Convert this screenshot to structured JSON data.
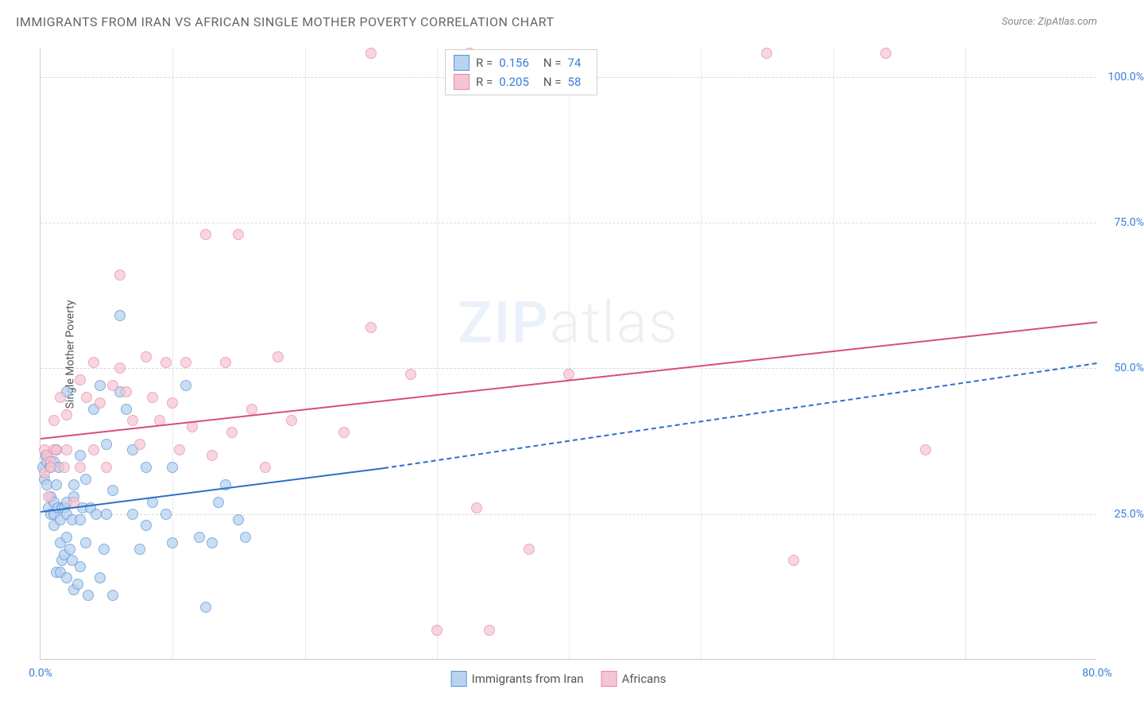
{
  "title": "IMMIGRANTS FROM IRAN VS AFRICAN SINGLE MOTHER POVERTY CORRELATION CHART",
  "source_label": "Source: ZipAtlas.com",
  "ylabel": "Single Mother Poverty",
  "watermark": {
    "part1": "ZIP",
    "part2": "atlas"
  },
  "chart": {
    "type": "scatter",
    "xlim": [
      0,
      80
    ],
    "ylim": [
      0,
      105
    ],
    "xticks": [
      0,
      80
    ],
    "xtick_labels": [
      "0.0%",
      "80.0%"
    ],
    "xgrid_lines": [
      10,
      20,
      30,
      40,
      50,
      60,
      70
    ],
    "yticks": [
      25,
      50,
      75,
      100
    ],
    "ytick_labels": [
      "25.0%",
      "50.0%",
      "75.0%",
      "100.0%"
    ],
    "background_color": "#ffffff",
    "grid_color": "#d8d8d8",
    "axis_color": "#cccccc",
    "tick_label_color": "#3b7dd8",
    "point_radius": 7,
    "series": [
      {
        "name": "Immigrants from Iran",
        "fill": "#b8d2f0",
        "stroke": "#5a93d6",
        "opacity": 0.75,
        "R": "0.156",
        "N": "74",
        "trend": {
          "color": "#2e6fc9",
          "width": 2,
          "solid_from": [
            0,
            25.5
          ],
          "solid_to": [
            26,
            33
          ],
          "dash_from": [
            26,
            33
          ],
          "dash_to": [
            80,
            51
          ]
        },
        "points": [
          [
            0.2,
            33
          ],
          [
            0.3,
            31
          ],
          [
            0.4,
            35
          ],
          [
            0.5,
            34
          ],
          [
            0.5,
            30
          ],
          [
            0.6,
            26
          ],
          [
            0.7,
            33
          ],
          [
            0.8,
            25
          ],
          [
            0.8,
            28
          ],
          [
            1.0,
            25
          ],
          [
            1.0,
            23
          ],
          [
            1.0,
            34
          ],
          [
            1.0,
            27
          ],
          [
            1.2,
            36
          ],
          [
            1.2,
            30
          ],
          [
            1.2,
            15
          ],
          [
            1.3,
            26
          ],
          [
            1.4,
            33
          ],
          [
            1.5,
            24
          ],
          [
            1.5,
            15
          ],
          [
            1.5,
            20
          ],
          [
            1.6,
            26
          ],
          [
            1.6,
            17
          ],
          [
            1.8,
            18
          ],
          [
            1.8,
            26
          ],
          [
            2.0,
            14
          ],
          [
            2.0,
            25
          ],
          [
            2.0,
            46
          ],
          [
            2.0,
            27
          ],
          [
            2.0,
            21
          ],
          [
            2.2,
            19
          ],
          [
            2.4,
            24
          ],
          [
            2.4,
            17
          ],
          [
            2.5,
            28
          ],
          [
            2.5,
            30
          ],
          [
            2.5,
            12
          ],
          [
            2.8,
            13
          ],
          [
            3.0,
            24
          ],
          [
            3.0,
            35
          ],
          [
            3.0,
            16
          ],
          [
            3.2,
            26
          ],
          [
            3.4,
            20
          ],
          [
            3.4,
            31
          ],
          [
            3.6,
            11
          ],
          [
            3.8,
            26
          ],
          [
            4.0,
            43
          ],
          [
            4.2,
            25
          ],
          [
            4.5,
            47
          ],
          [
            4.5,
            14
          ],
          [
            4.8,
            19
          ],
          [
            5.0,
            37
          ],
          [
            5.0,
            25
          ],
          [
            5.5,
            29
          ],
          [
            5.5,
            11
          ],
          [
            6.0,
            46
          ],
          [
            6.0,
            59
          ],
          [
            6.5,
            43
          ],
          [
            7.0,
            25
          ],
          [
            7.0,
            36
          ],
          [
            7.5,
            19
          ],
          [
            8.0,
            23
          ],
          [
            8.0,
            33
          ],
          [
            8.5,
            27
          ],
          [
            9.5,
            25
          ],
          [
            10.0,
            20
          ],
          [
            10.0,
            33
          ],
          [
            11.0,
            47
          ],
          [
            12.0,
            21
          ],
          [
            12.5,
            9
          ],
          [
            13.0,
            20
          ],
          [
            13.5,
            27
          ],
          [
            14.0,
            30
          ],
          [
            15.0,
            24
          ],
          [
            15.5,
            21
          ]
        ]
      },
      {
        "name": "Africans",
        "fill": "#f6c5d3",
        "stroke": "#e28aa5",
        "opacity": 0.72,
        "R": "0.205",
        "N": "58",
        "trend": {
          "color": "#d84e78",
          "width": 2,
          "solid_from": [
            0,
            38
          ],
          "solid_to": [
            80,
            58
          ]
        },
        "points": [
          [
            0.3,
            36
          ],
          [
            0.3,
            32
          ],
          [
            0.5,
            35
          ],
          [
            0.6,
            28
          ],
          [
            0.8,
            34
          ],
          [
            0.8,
            33
          ],
          [
            1.0,
            36
          ],
          [
            1.0,
            41
          ],
          [
            1.2,
            36
          ],
          [
            1.5,
            45
          ],
          [
            1.8,
            33
          ],
          [
            2.0,
            42
          ],
          [
            2.0,
            36
          ],
          [
            2.5,
            27
          ],
          [
            3.0,
            48
          ],
          [
            3.0,
            33
          ],
          [
            3.5,
            45
          ],
          [
            4.0,
            36
          ],
          [
            4.0,
            51
          ],
          [
            4.5,
            44
          ],
          [
            5.0,
            33
          ],
          [
            5.5,
            47
          ],
          [
            6.0,
            50
          ],
          [
            6.0,
            66
          ],
          [
            6.5,
            46
          ],
          [
            7.0,
            41
          ],
          [
            7.5,
            37
          ],
          [
            8.0,
            52
          ],
          [
            8.5,
            45
          ],
          [
            9.0,
            41
          ],
          [
            9.5,
            51
          ],
          [
            10.0,
            44
          ],
          [
            10.5,
            36
          ],
          [
            11.0,
            51
          ],
          [
            11.5,
            40
          ],
          [
            12.5,
            73
          ],
          [
            13.0,
            35
          ],
          [
            14.0,
            51
          ],
          [
            14.5,
            39
          ],
          [
            15.0,
            73
          ],
          [
            16.0,
            43
          ],
          [
            17.0,
            33
          ],
          [
            18.0,
            52
          ],
          [
            19.0,
            41
          ],
          [
            23.0,
            39
          ],
          [
            25.0,
            57
          ],
          [
            25.0,
            104
          ],
          [
            28.0,
            49
          ],
          [
            30.0,
            5
          ],
          [
            32.5,
            104
          ],
          [
            33.0,
            26
          ],
          [
            34.0,
            5
          ],
          [
            37.0,
            19
          ],
          [
            40.0,
            49
          ],
          [
            55.0,
            104
          ],
          [
            57.0,
            17
          ],
          [
            64.0,
            104
          ],
          [
            67.0,
            36
          ]
        ]
      }
    ]
  },
  "legend_top": {
    "rows": [
      {
        "swatch_fill": "#b8d2f0",
        "swatch_stroke": "#5a93d6",
        "r_label": "R =",
        "r_val": "0.156",
        "n_label": "N =",
        "n_val": "74"
      },
      {
        "swatch_fill": "#f6c5d3",
        "swatch_stroke": "#e28aa5",
        "r_label": "R =",
        "r_val": "0.205",
        "n_label": "N =",
        "n_val": "58"
      }
    ]
  },
  "legend_bottom": {
    "items": [
      {
        "swatch_fill": "#b8d2f0",
        "swatch_stroke": "#5a93d6",
        "label": "Immigrants from Iran"
      },
      {
        "swatch_fill": "#f6c5d3",
        "swatch_stroke": "#e28aa5",
        "label": "Africans"
      }
    ]
  }
}
